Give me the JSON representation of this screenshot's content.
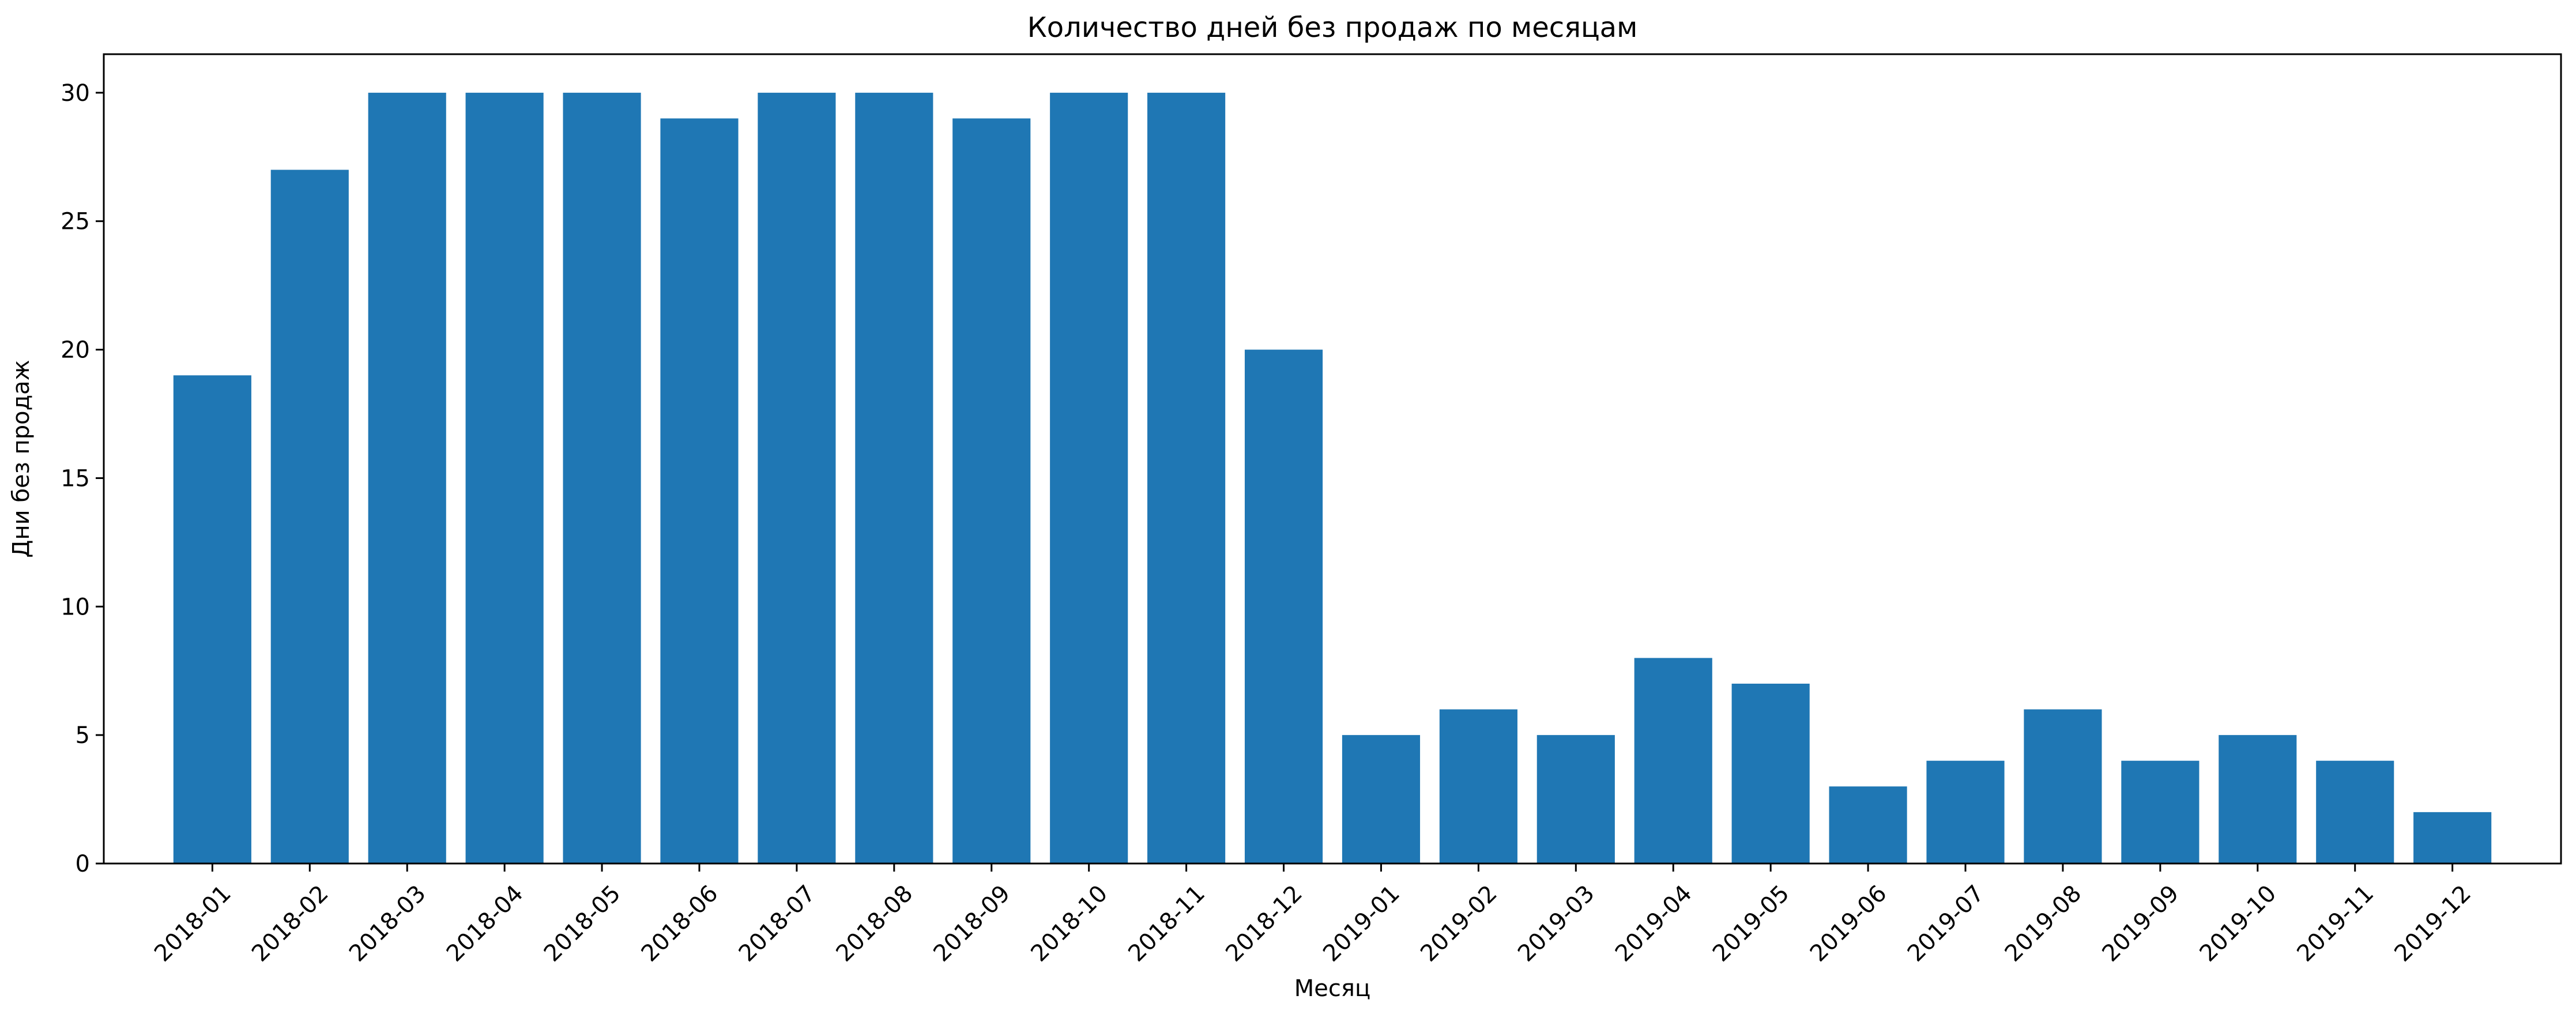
{
  "chart_data": {
    "type": "bar",
    "title": "Количество дней без продаж по месяцам",
    "xlabel": "Месяц",
    "ylabel": "Дни без продаж",
    "categories": [
      "2018-01",
      "2018-02",
      "2018-03",
      "2018-04",
      "2018-05",
      "2018-06",
      "2018-07",
      "2018-08",
      "2018-09",
      "2018-10",
      "2018-11",
      "2018-12",
      "2019-01",
      "2019-02",
      "2019-03",
      "2019-04",
      "2019-05",
      "2019-06",
      "2019-07",
      "2019-08",
      "2019-09",
      "2019-10",
      "2019-11",
      "2019-12"
    ],
    "values": [
      19,
      27,
      30,
      30,
      30,
      29,
      30,
      30,
      29,
      30,
      30,
      20,
      5,
      6,
      5,
      8,
      7,
      3,
      4,
      6,
      4,
      5,
      4,
      2
    ],
    "ylim": [
      0,
      31.5
    ],
    "yticks": [
      0,
      5,
      10,
      15,
      20,
      25,
      30
    ],
    "grid": false,
    "bar_color": "#1f77b4"
  }
}
